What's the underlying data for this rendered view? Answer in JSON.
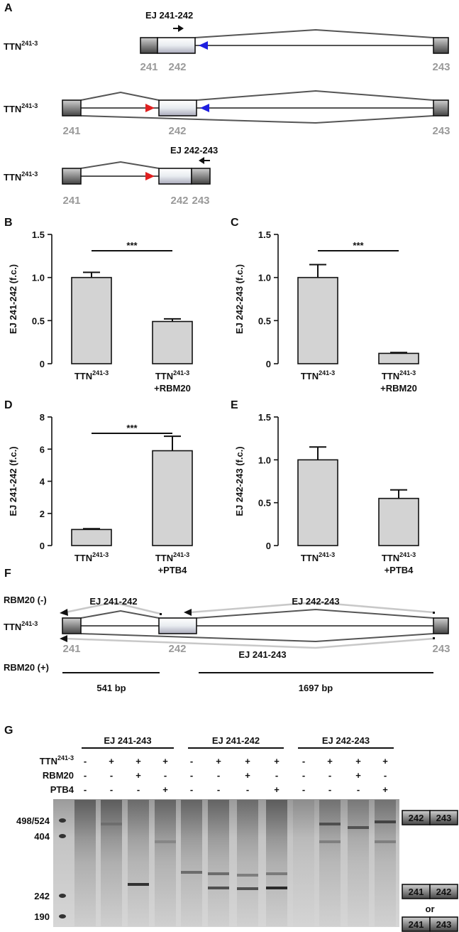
{
  "panel_a": {
    "label": "A",
    "rows": [
      {
        "gene": "TTN241-3",
        "primer": "EJ 241-242",
        "exons": [
          "241",
          "242",
          "243"
        ]
      },
      {
        "gene": "TTN241-3",
        "exons": [
          "241",
          "242",
          "243"
        ]
      },
      {
        "gene": "TTN241-3",
        "primer": "EJ 242-243",
        "exons": [
          "241",
          "242",
          "243"
        ]
      }
    ]
  },
  "chart_data": [
    {
      "label": "B",
      "type": "bar",
      "ylabel": "EJ 241-242 (f.c.)",
      "categories": [
        "TTN241-3",
        "TTN241-3 +RBM20"
      ],
      "values": [
        1.0,
        0.49
      ],
      "errors": [
        0.06,
        0.03
      ],
      "color": "#d3d3d3",
      "ylim": [
        0,
        1.5
      ],
      "yticks": [
        0,
        0.5,
        {
          "value": 1,
          "label": "1.0"
        },
        1.5
      ],
      "significance": "***"
    },
    {
      "label": "C",
      "type": "bar",
      "ylabel": "EJ 242-243 (f.c.)",
      "categories": [
        "TTN241-3",
        "TTN241-3 +RBM20"
      ],
      "values": [
        1.0,
        0.12
      ],
      "errors": [
        0.15,
        0.01
      ],
      "color": "#d3d3d3",
      "ylim": [
        0,
        1.5
      ],
      "yticks": [
        0,
        0.5,
        {
          "value": 1,
          "label": "1.0"
        },
        1.5
      ],
      "significance": "***"
    },
    {
      "label": "D",
      "type": "bar",
      "ylabel": "EJ 241-242 (f.c.)",
      "categories": [
        "TTN241-3",
        "TTN241-3 +PTB4"
      ],
      "values": [
        1.0,
        5.9
      ],
      "errors": [
        0.05,
        0.9
      ],
      "color": "#d3d3d3",
      "ylim": [
        0,
        8
      ],
      "yticks": [
        0,
        2,
        4,
        6,
        8
      ],
      "significance": "***"
    },
    {
      "label": "E",
      "type": "bar",
      "ylabel": "EJ 242-243 (f.c.)",
      "categories": [
        "TTN241-3",
        "TTN241-3 +PTB4"
      ],
      "values": [
        1.0,
        0.55
      ],
      "errors": [
        0.15,
        0.1
      ],
      "color": "#d3d3d3",
      "ylim": [
        0,
        1.5
      ],
      "yticks": [
        0,
        0.5,
        {
          "value": 1,
          "label": "1.0"
        },
        1.5
      ]
    }
  ],
  "panel_f": {
    "label": "F",
    "condition_minus": "RBM20 (-)",
    "condition_plus": "RBM20 (+)",
    "gene": "TTN241-3",
    "exons": [
      "241",
      "242",
      "243"
    ],
    "products": [
      "EJ 241-242",
      "EJ 242-243",
      "EJ 241-243"
    ],
    "sizes": [
      "541 bp",
      "1697 bp"
    ]
  },
  "panel_g": {
    "label": "G",
    "groups": [
      "EJ 241-243",
      "EJ 241-242",
      "EJ 242-243"
    ],
    "rows": [
      {
        "name": "TTN241-3",
        "signs": [
          "-",
          "+",
          "+",
          "+",
          "-",
          "+",
          "+",
          "+",
          "-",
          "+",
          "+",
          "+"
        ]
      },
      {
        "name": "RBM20",
        "signs": [
          "-",
          "-",
          "+",
          "-",
          "-",
          "-",
          "+",
          "-",
          "-",
          "-",
          "+",
          "-"
        ]
      },
      {
        "name": "PTB4",
        "signs": [
          "-",
          "-",
          "-",
          "+",
          "-",
          "-",
          "-",
          "+",
          "-",
          "-",
          "-",
          "+"
        ]
      }
    ],
    "markers": [
      "498/524",
      "404",
      "242",
      "190"
    ],
    "products": [
      [
        "242",
        "243"
      ],
      [
        "241",
        "242"
      ],
      [
        "241",
        "243"
      ]
    ],
    "or": "or"
  }
}
